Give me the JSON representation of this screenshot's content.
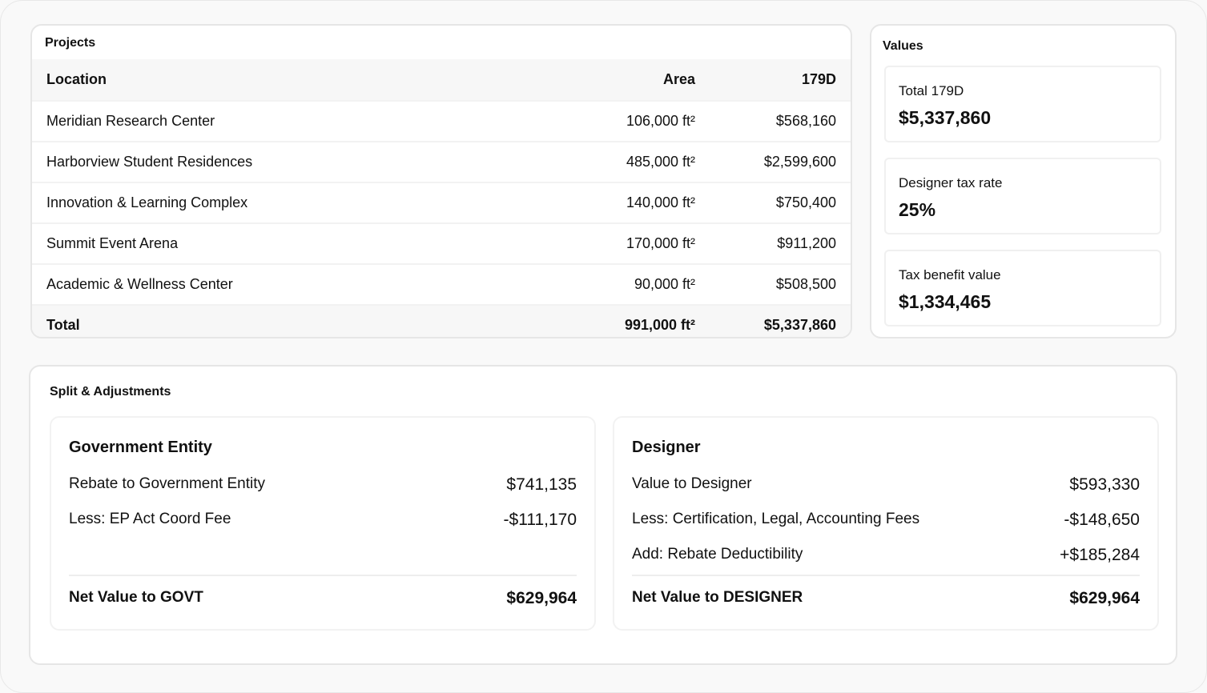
{
  "projects": {
    "title": "Projects",
    "headers": [
      "Location",
      "Area",
      "179D"
    ],
    "rows": [
      [
        "Meridian Research Center",
        "106,000 ft²",
        "$568,160"
      ],
      [
        "Harborview Student Residences",
        "485,000 ft²",
        "$2,599,600"
      ],
      [
        "Innovation & Learning Complex",
        "140,000 ft²",
        "$750,400"
      ],
      [
        "Summit Event Arena",
        "170,000 ft²",
        "$911,200"
      ],
      [
        "Academic & Wellness Center",
        "90,000 ft²",
        "$508,500"
      ]
    ],
    "total": [
      "Total",
      "991,000 ft²",
      "$5,337,860"
    ]
  },
  "values": {
    "title": "Values",
    "items": [
      {
        "label": "Total 179D",
        "value": "$5,337,860"
      },
      {
        "label": "Designer tax rate",
        "value": "25%"
      },
      {
        "label": "Tax benefit value",
        "value": "$1,334,465"
      }
    ]
  },
  "split": {
    "title": "Split & Adjustments",
    "government": {
      "title": "Government Entity",
      "rows": [
        [
          "Rebate to Government Entity",
          "$741,135"
        ],
        [
          "Less: EP Act Coord Fee",
          "-$111,170"
        ]
      ],
      "net": [
        "Net Value to GOVT",
        "$629,964"
      ]
    },
    "designer": {
      "title": "Designer",
      "rows": [
        [
          "Value to Designer",
          "$593,330"
        ],
        [
          "Less: Certification, Legal, Accounting Fees",
          "-$148,650"
        ],
        [
          "Add: Rebate Deductibility",
          "+$185,284"
        ]
      ],
      "net": [
        "Net Value to DESIGNER",
        "$629,964"
      ]
    }
  }
}
